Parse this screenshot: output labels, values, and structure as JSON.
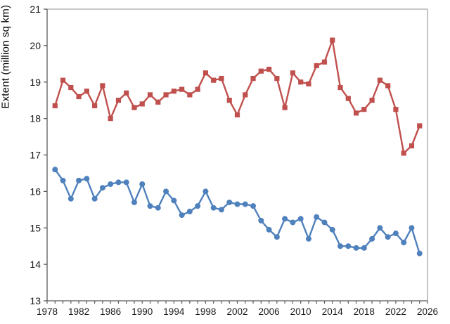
{
  "chart_data": {
    "type": "line",
    "title": "",
    "xlabel": "",
    "ylabel": "Extent (million sq km)",
    "xlim": [
      1978,
      2026
    ],
    "ylim": [
      13,
      21
    ],
    "grid": false,
    "legend": "none",
    "x_major_tick_labels": [
      "1978",
      "1982",
      "1986",
      "1990",
      "1994",
      "1998",
      "2002",
      "2006",
      "2010",
      "2014",
      "2018",
      "2022",
      "2026"
    ],
    "x_major_ticks": [
      1978,
      1982,
      1986,
      1990,
      1994,
      1998,
      2002,
      2006,
      2010,
      2014,
      2018,
      2022,
      2026
    ],
    "x_minor_tick_step": 1,
    "y_ticks": [
      13,
      14,
      15,
      16,
      17,
      18,
      19,
      20,
      21
    ],
    "y_tick_labels": [
      "13",
      "14",
      "15",
      "16",
      "17",
      "18",
      "19",
      "20",
      "21"
    ],
    "x": [
      1979,
      1980,
      1981,
      1982,
      1983,
      1984,
      1985,
      1986,
      1987,
      1988,
      1989,
      1990,
      1991,
      1992,
      1993,
      1994,
      1995,
      1996,
      1997,
      1998,
      1999,
      2000,
      2001,
      2002,
      2003,
      2004,
      2005,
      2006,
      2007,
      2008,
      2009,
      2010,
      2011,
      2012,
      2013,
      2014,
      2015,
      2016,
      2017,
      2018,
      2019,
      2020,
      2021,
      2022,
      2023,
      2024,
      2025
    ],
    "series": [
      {
        "name": "red-squares-upper-series",
        "color": "#C0504D",
        "marker": "square",
        "values": [
          18.35,
          19.05,
          18.85,
          18.6,
          18.75,
          18.35,
          18.9,
          18.0,
          18.5,
          18.7,
          18.3,
          18.4,
          18.65,
          18.45,
          18.65,
          18.75,
          18.8,
          18.65,
          18.8,
          19.25,
          19.05,
          19.1,
          18.5,
          18.1,
          18.65,
          19.1,
          19.3,
          19.35,
          19.1,
          18.3,
          19.25,
          19.0,
          18.95,
          19.45,
          19.55,
          20.15,
          18.85,
          18.55,
          18.15,
          18.25,
          18.5,
          19.05,
          18.9,
          18.25,
          17.05,
          17.25,
          17.8
        ]
      },
      {
        "name": "blue-circles-lower-series",
        "color": "#4F81BD",
        "marker": "circle",
        "values": [
          16.6,
          16.3,
          15.8,
          16.3,
          16.35,
          15.8,
          16.1,
          16.2,
          16.25,
          16.25,
          15.7,
          16.2,
          15.6,
          15.55,
          16.0,
          15.75,
          15.35,
          15.45,
          15.6,
          16.0,
          15.55,
          15.5,
          15.7,
          15.65,
          15.65,
          15.6,
          15.2,
          14.95,
          14.75,
          15.25,
          15.15,
          15.25,
          14.7,
          15.3,
          15.15,
          14.95,
          14.5,
          14.5,
          14.45,
          14.45,
          14.7,
          15.0,
          14.75,
          14.85,
          14.6,
          15.0,
          14.3
        ]
      }
    ],
    "colors": {
      "plot_border": "#a6a6a6",
      "axis_line": "#595959",
      "tick_mark": "#595959",
      "tick_label": "#1a1a1a"
    }
  }
}
